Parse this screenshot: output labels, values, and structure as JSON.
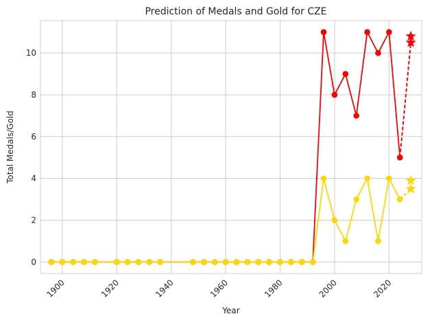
{
  "chart_data": {
    "type": "line",
    "title": "Prediction of Medals and Gold for CZE",
    "xlabel": "Year",
    "ylabel": "Total Medals/Gold",
    "xlim": [
      1892,
      2032
    ],
    "ylim": [
      -0.55,
      11.55
    ],
    "xticks": [
      1900,
      1920,
      1940,
      1960,
      1980,
      2000,
      2020
    ],
    "yticks": [
      0,
      2,
      4,
      6,
      8,
      10
    ],
    "grid": true,
    "x": [
      1896,
      1900,
      1904,
      1908,
      1912,
      1920,
      1924,
      1928,
      1932,
      1936,
      1948,
      1952,
      1956,
      1960,
      1964,
      1968,
      1972,
      1976,
      1980,
      1984,
      1988,
      1992,
      1996,
      2000,
      2004,
      2008,
      2012,
      2016,
      2020,
      2024
    ],
    "series": [
      {
        "color": "#ff0000",
        "values": [
          0,
          0,
          0,
          0,
          0,
          0,
          0,
          0,
          0,
          0,
          0,
          0,
          0,
          0,
          0,
          0,
          0,
          0,
          0,
          0,
          0,
          0,
          11,
          8,
          9,
          7,
          11,
          10,
          11,
          5
        ]
      },
      {
        "color": "#ffd700",
        "values": [
          0,
          0,
          0,
          0,
          0,
          0,
          0,
          0,
          0,
          0,
          0,
          0,
          0,
          0,
          0,
          0,
          0,
          0,
          0,
          0,
          0,
          0,
          4,
          2,
          1,
          3,
          4,
          1,
          4,
          3
        ]
      }
    ],
    "predictions": [
      {
        "color": "#ff0000",
        "from": [
          2024,
          5
        ],
        "to": [
          2028,
          10.5
        ],
        "points": [
          [
            2028,
            10.8
          ],
          [
            2028,
            10.5
          ]
        ]
      },
      {
        "color": "#ffd700",
        "from": [
          2024,
          3
        ],
        "to": [
          2028,
          3.5
        ],
        "points": [
          [
            2028,
            3.9
          ],
          [
            2028,
            3.5
          ]
        ]
      }
    ]
  }
}
